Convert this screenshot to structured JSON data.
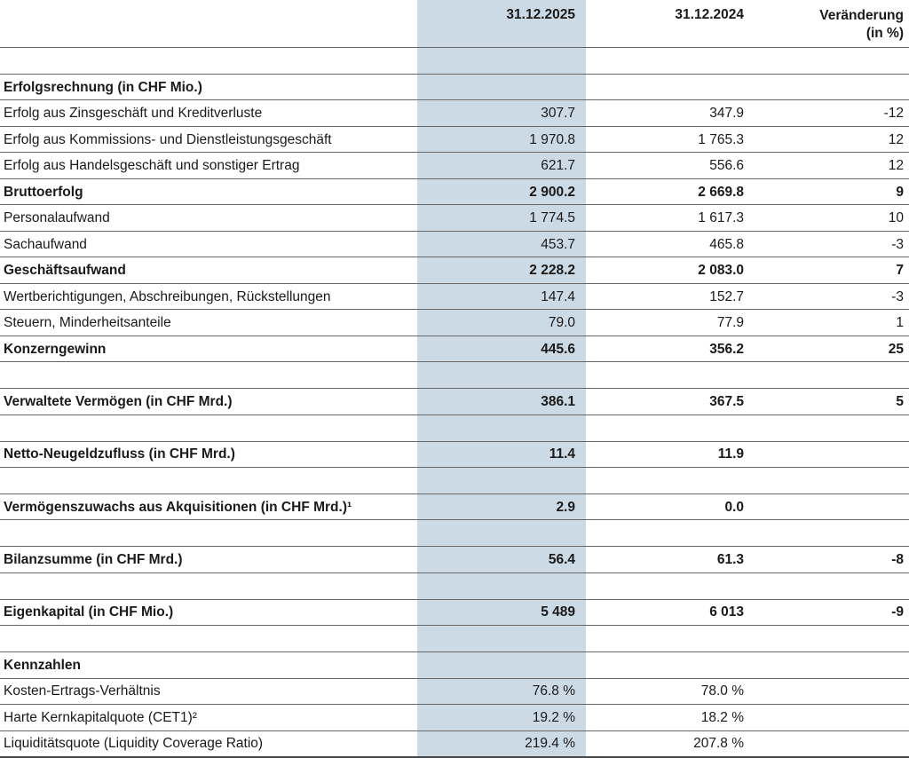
{
  "colors": {
    "highlight": "#ccdae6",
    "line": "#666666",
    "strongline": "#474747",
    "text": "#1a1a1a",
    "background": "#ffffff"
  },
  "table": {
    "header": {
      "col_2025": "31.12.2025",
      "col_2024": "31.12.2024",
      "col_change_line1": "Veränderung",
      "col_change_line2": "(in %)"
    },
    "rows": [
      {
        "label": "Erfolgsrechnung (in CHF Mio.)",
        "v2025": "",
        "v2024": "",
        "change": ""
      },
      {
        "label": "Erfolg aus Zinsgeschäft und Kreditverluste",
        "v2025": "307.7",
        "v2024": "347.9",
        "change": "-12"
      },
      {
        "label": "Erfolg aus Kommissions- und Dienstleistungsgeschäft",
        "v2025": "1 970.8",
        "v2024": "1 765.3",
        "change": "12"
      },
      {
        "label": "Erfolg aus Handelsgeschäft und sonstiger Ertrag",
        "v2025": "621.7",
        "v2024": "556.6",
        "change": "12"
      },
      {
        "label": "Bruttoerfolg",
        "v2025": "2 900.2",
        "v2024": "2 669.8",
        "change": "9"
      },
      {
        "label": "Personalaufwand",
        "v2025": "1 774.5",
        "v2024": "1 617.3",
        "change": "10"
      },
      {
        "label": "Sachaufwand",
        "v2025": "453.7",
        "v2024": "465.8",
        "change": "-3"
      },
      {
        "label": "Geschäftsaufwand",
        "v2025": "2 228.2",
        "v2024": "2 083.0",
        "change": "7"
      },
      {
        "label": "Wertberichtigungen, Abschreibungen, Rückstellungen",
        "v2025": "147.4",
        "v2024": "152.7",
        "change": "-3"
      },
      {
        "label": "Steuern, Minderheitsanteile",
        "v2025": "79.0",
        "v2024": "77.9",
        "change": "1"
      },
      {
        "label": "Konzerngewinn",
        "v2025": "445.6",
        "v2024": "356.2",
        "change": "25"
      },
      {
        "label": "Verwaltete Vermögen (in CHF Mrd.)",
        "v2025": "386.1",
        "v2024": "367.5",
        "change": "5"
      },
      {
        "label": "Netto-Neugeldzufluss (in CHF Mrd.)",
        "v2025": "11.4",
        "v2024": "11.9",
        "change": ""
      },
      {
        "label": "Vermögenszuwachs aus Akquisitionen (in CHF Mrd.)¹",
        "v2025": "2.9",
        "v2024": "0.0",
        "change": ""
      },
      {
        "label": "Bilanzsumme (in CHF Mrd.)",
        "v2025": "56.4",
        "v2024": "61.3",
        "change": "-8"
      },
      {
        "label": "Eigenkapital (in CHF Mio.)",
        "v2025": "5 489",
        "v2024": "6 013",
        "change": "-9"
      },
      {
        "label": "Kennzahlen",
        "v2025": "",
        "v2024": "",
        "change": ""
      },
      {
        "label": "Kosten-Ertrags-Verhältnis",
        "v2025": "76.8 %",
        "v2024": "78.0 %",
        "change": ""
      },
      {
        "label": "Harte Kernkapitalquote (CET1)²",
        "v2025": "19.2 %",
        "v2024": "18.2 %",
        "change": ""
      },
      {
        "label": "Liquiditätsquote (Liquidity Coverage Ratio)",
        "v2025": "219.4 %",
        "v2024": "207.8 %",
        "change": ""
      }
    ]
  }
}
